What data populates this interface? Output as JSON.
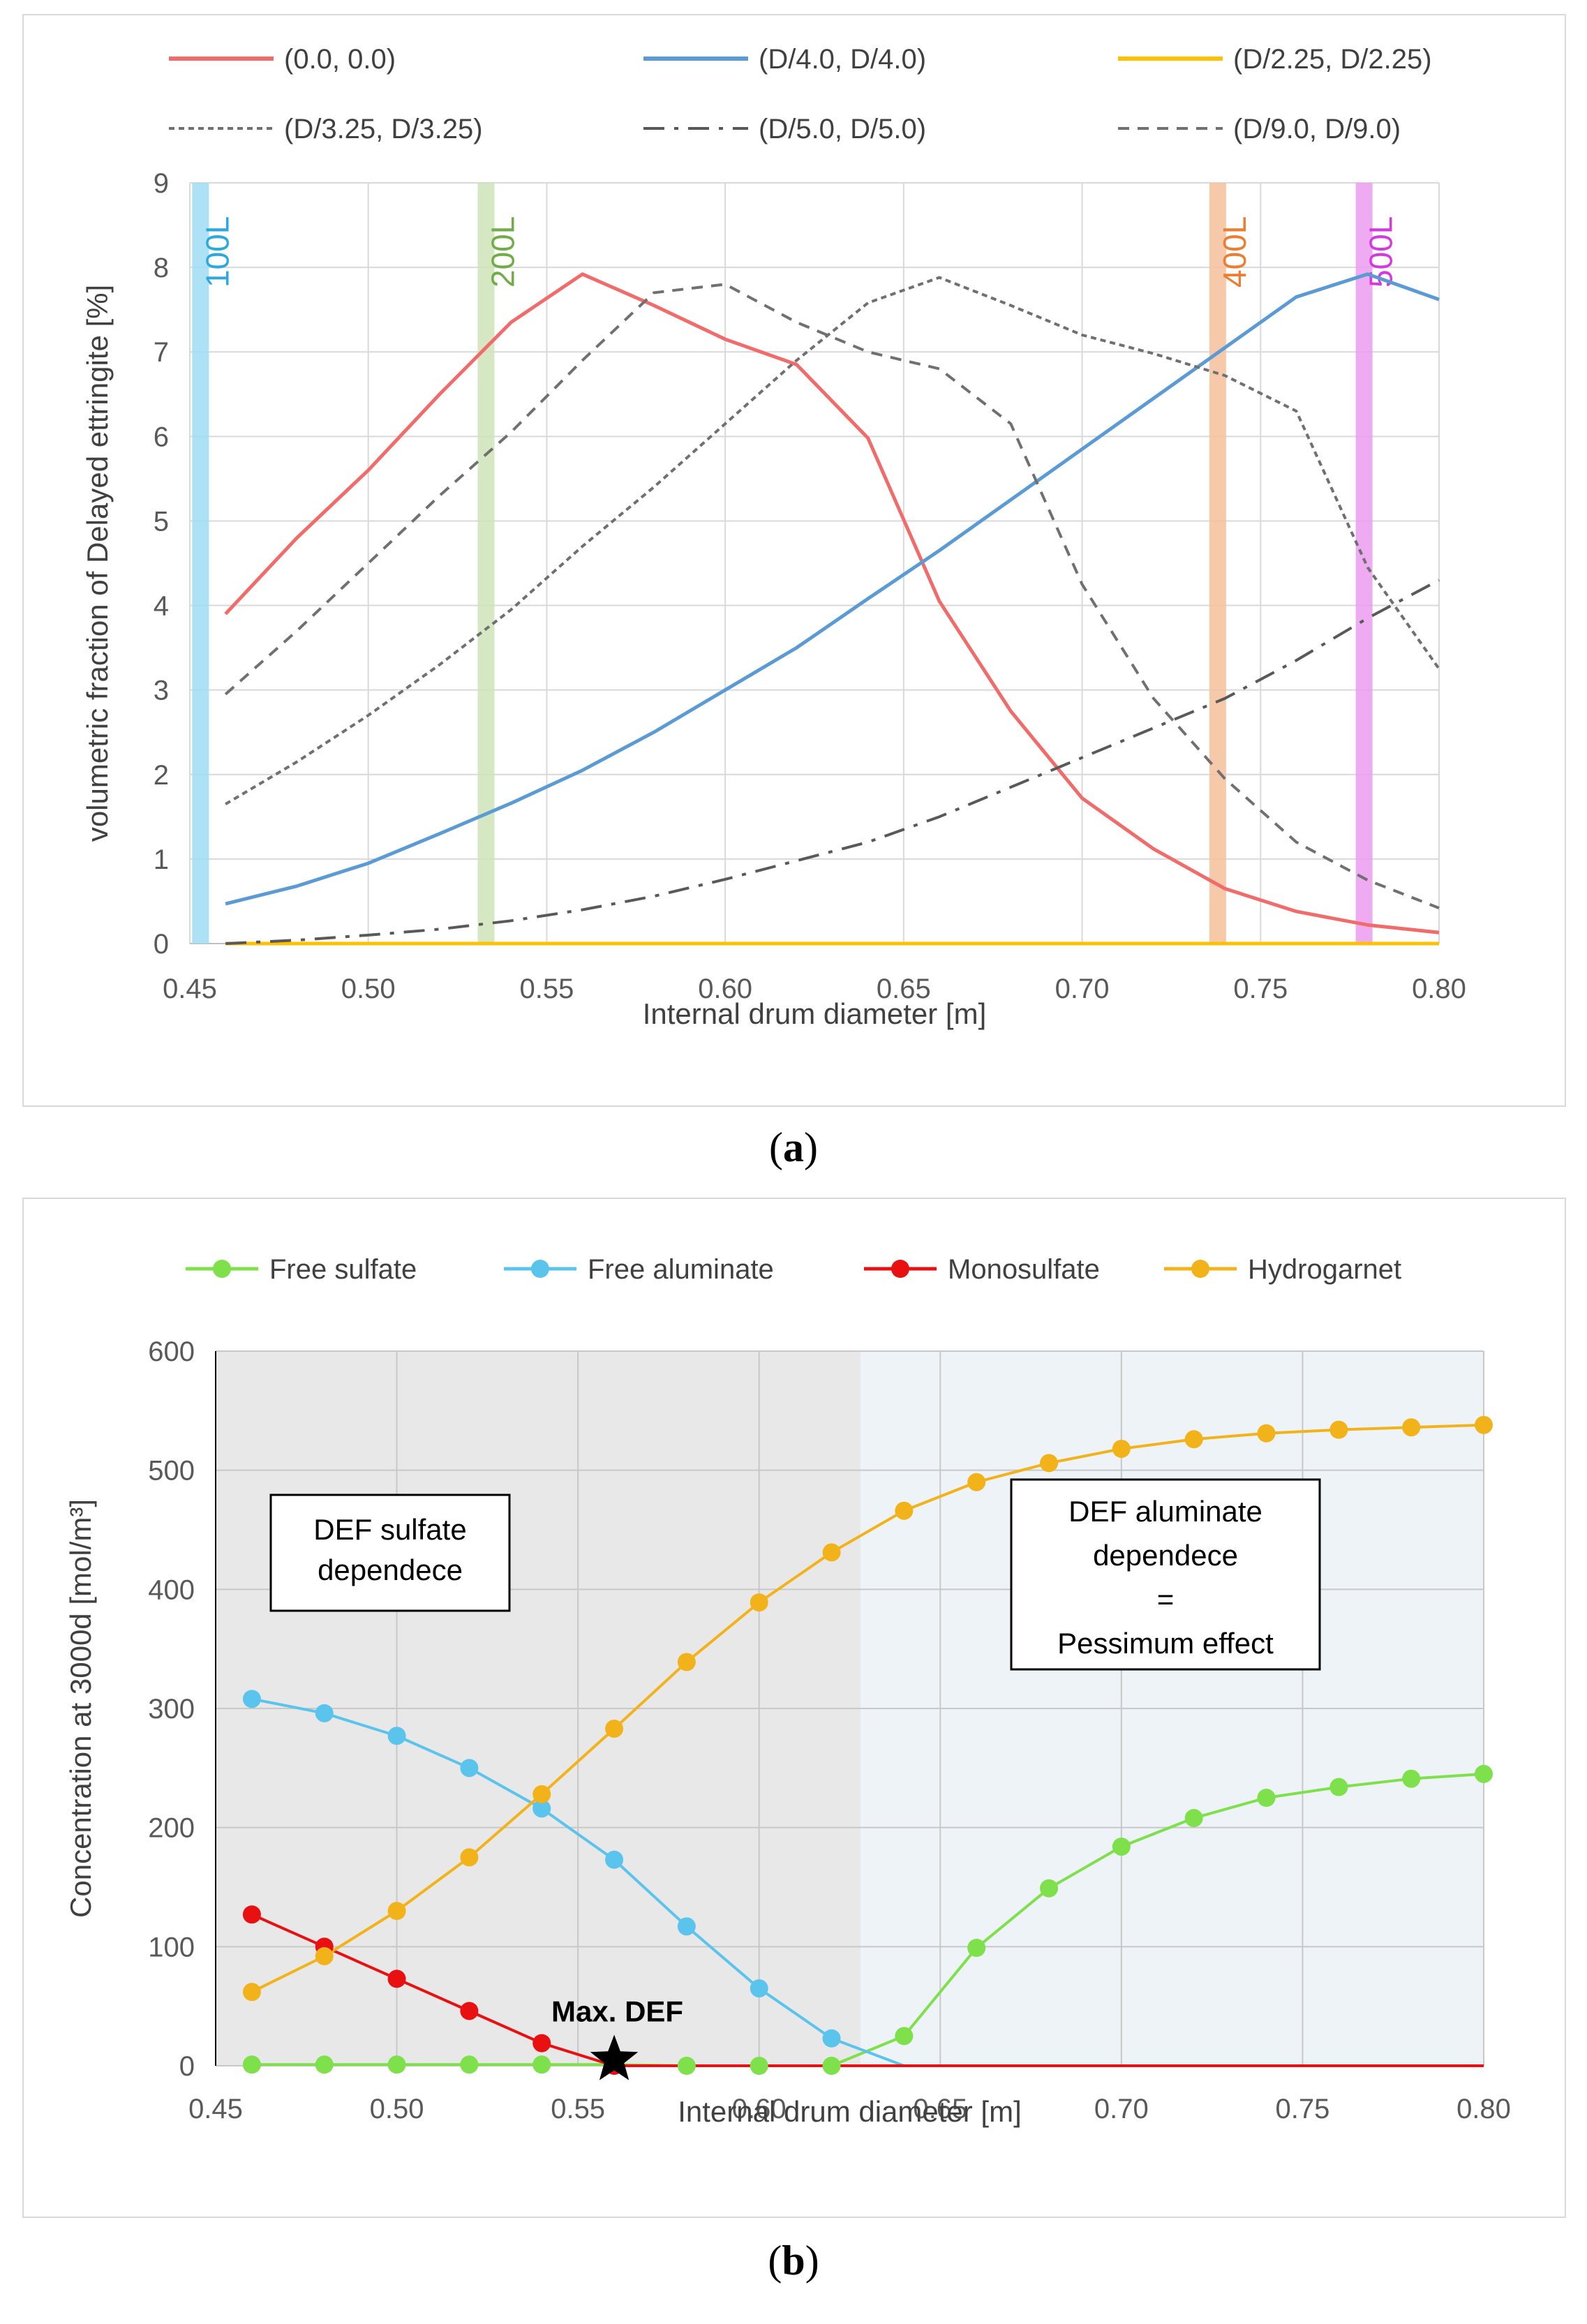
{
  "caption_a": "(a)",
  "caption_b": "(b)",
  "chart_data": [
    {
      "type": "line",
      "xlabel": "Internal drum diameter [m]",
      "ylabel": "volumetric fraction of Delayed ettringite [%]",
      "xlim": [
        0.45,
        0.8
      ],
      "ylim": [
        0,
        9
      ],
      "xticks": [
        "0.45",
        "0.50",
        "0.55",
        "0.60",
        "0.65",
        "0.70",
        "0.75",
        "0.80"
      ],
      "yticks": [
        "0",
        "1",
        "2",
        "3",
        "4",
        "5",
        "6",
        "7",
        "8",
        "9"
      ],
      "grid": true,
      "legend": "top",
      "volume_bands": [
        {
          "label": "100L",
          "x": 0.453,
          "color": "#9fdcf5",
          "text_color": "#2aa8e0"
        },
        {
          "label": "200L",
          "x": 0.533,
          "color": "#cfe3b8",
          "text_color": "#70ad47"
        },
        {
          "label": "400L",
          "x": 0.738,
          "color": "#f4c09c",
          "text_color": "#ed7d31"
        },
        {
          "label": "500L",
          "x": 0.779,
          "color": "#ec9cf0",
          "text_color": "#d438de"
        }
      ],
      "series": [
        {
          "name": "(0.0, 0.0)",
          "color": "#f26b6b",
          "style": "solid",
          "x": [
            0.46,
            0.48,
            0.5,
            0.52,
            0.54,
            0.56,
            0.58,
            0.6,
            0.62,
            0.64,
            0.66,
            0.68,
            0.7,
            0.72,
            0.74,
            0.76,
            0.78,
            0.8
          ],
          "values": [
            3.9,
            4.8,
            5.6,
            6.5,
            7.35,
            7.92,
            7.55,
            7.15,
            6.85,
            5.98,
            4.05,
            2.75,
            1.72,
            1.12,
            0.65,
            0.38,
            0.22,
            0.13
          ]
        },
        {
          "name": "(D/4.0, D/4.0)",
          "color": "#5b9bd5",
          "style": "solid",
          "x": [
            0.46,
            0.48,
            0.5,
            0.52,
            0.54,
            0.56,
            0.58,
            0.6,
            0.62,
            0.64,
            0.66,
            0.68,
            0.7,
            0.72,
            0.74,
            0.76,
            0.78,
            0.8
          ],
          "values": [
            0.47,
            0.68,
            0.95,
            1.3,
            1.66,
            2.05,
            2.5,
            3.0,
            3.5,
            4.08,
            4.65,
            5.25,
            5.85,
            6.45,
            7.05,
            7.65,
            7.92,
            7.62
          ]
        },
        {
          "name": "(D/2.25, D/2.25)",
          "color": "#ffc000",
          "style": "solid",
          "x": [
            0.46,
            0.8
          ],
          "values": [
            0.0,
            0.0
          ]
        },
        {
          "name": "(D/3.25, D/3.25)",
          "color": "#707070",
          "style": "dotted",
          "x": [
            0.46,
            0.48,
            0.5,
            0.52,
            0.54,
            0.56,
            0.58,
            0.6,
            0.62,
            0.64,
            0.66,
            0.68,
            0.7,
            0.72,
            0.74,
            0.76,
            0.78,
            0.8
          ],
          "values": [
            1.65,
            2.15,
            2.7,
            3.3,
            3.95,
            4.7,
            5.4,
            6.15,
            6.9,
            7.58,
            7.88,
            7.55,
            7.2,
            6.98,
            6.72,
            6.3,
            4.45,
            3.25
          ]
        },
        {
          "name": "(D/5.0, D/5.0)",
          "color": "#595959",
          "style": "dashdot",
          "x": [
            0.46,
            0.48,
            0.5,
            0.52,
            0.54,
            0.56,
            0.58,
            0.6,
            0.62,
            0.64,
            0.66,
            0.68,
            0.7,
            0.72,
            0.74,
            0.76,
            0.78,
            0.8
          ],
          "values": [
            0.0,
            0.04,
            0.1,
            0.17,
            0.27,
            0.4,
            0.56,
            0.76,
            0.98,
            1.2,
            1.5,
            1.85,
            2.2,
            2.55,
            2.9,
            3.35,
            3.85,
            4.3
          ]
        },
        {
          "name": "(D/9.0, D/9.0)",
          "color": "#707070",
          "style": "dashed",
          "x": [
            0.46,
            0.48,
            0.5,
            0.52,
            0.54,
            0.56,
            0.58,
            0.6,
            0.62,
            0.64,
            0.66,
            0.68,
            0.7,
            0.72,
            0.74,
            0.76,
            0.78,
            0.8
          ],
          "values": [
            2.95,
            3.7,
            4.5,
            5.3,
            6.05,
            6.9,
            7.7,
            7.8,
            7.35,
            7.0,
            6.8,
            6.15,
            4.25,
            2.9,
            1.95,
            1.2,
            0.75,
            0.42
          ]
        }
      ]
    },
    {
      "type": "line",
      "xlabel": "Internal drum diameter [m]",
      "ylabel": "Concentration at 3000d [mol/m³]",
      "xlim": [
        0.45,
        0.8
      ],
      "ylim": [
        0,
        600
      ],
      "xticks": [
        "0.45",
        "0.50",
        "0.55",
        "0.60",
        "0.65",
        "0.70",
        "0.75",
        "0.80"
      ],
      "yticks": [
        "0",
        "100",
        "200",
        "300",
        "400",
        "500",
        "600"
      ],
      "grid": true,
      "legend": "top",
      "regions": [
        {
          "from": 0.45,
          "to": 0.628,
          "color": "#e8e8e8"
        },
        {
          "from": 0.628,
          "to": 0.8,
          "color": "#eef3f8"
        }
      ],
      "annotations": [
        {
          "lines": [
            "DEF sulfate",
            "dependece"
          ]
        },
        {
          "lines": [
            "DEF aluminate",
            "dependece",
            "=",
            "Pessimum effect"
          ]
        },
        {
          "text": "Max. DEF",
          "x": 0.56,
          "y": 5
        }
      ],
      "series": [
        {
          "name": "Free sulfate",
          "color": "#7ee04a",
          "x": [
            0.46,
            0.48,
            0.5,
            0.52,
            0.54,
            0.56,
            0.58,
            0.6,
            0.62,
            0.64,
            0.66,
            0.68,
            0.7,
            0.72,
            0.74,
            0.76,
            0.78,
            0.8
          ],
          "values": [
            1,
            1,
            1,
            1,
            1,
            1,
            0,
            0,
            0,
            25,
            99,
            149,
            184,
            208,
            225,
            234,
            241,
            245
          ]
        },
        {
          "name": "Free aluminate",
          "color": "#5bc4ec",
          "x": [
            0.46,
            0.48,
            0.5,
            0.52,
            0.54,
            0.56,
            0.58,
            0.6,
            0.62
          ],
          "values": [
            308,
            296,
            277,
            250,
            216,
            173,
            117,
            65,
            23
          ],
          "tail": [
            0.64,
            0
          ]
        },
        {
          "name": "Monosulfate",
          "color": "#e81010",
          "x": [
            0.46,
            0.48,
            0.5,
            0.52,
            0.54,
            0.56
          ],
          "values": [
            127,
            100,
            73,
            46,
            19,
            0
          ],
          "tail": [
            0.8,
            0
          ]
        },
        {
          "name": "Hydrogarnet",
          "color": "#f2b31a",
          "x": [
            0.46,
            0.48,
            0.5,
            0.52,
            0.54,
            0.56,
            0.58,
            0.6,
            0.62,
            0.64,
            0.66,
            0.68,
            0.7,
            0.72,
            0.74,
            0.76,
            0.78,
            0.8
          ],
          "values": [
            62,
            92,
            130,
            175,
            228,
            283,
            339,
            389,
            431,
            466,
            490,
            506,
            518,
            526,
            531,
            534,
            536,
            538
          ]
        }
      ]
    }
  ]
}
